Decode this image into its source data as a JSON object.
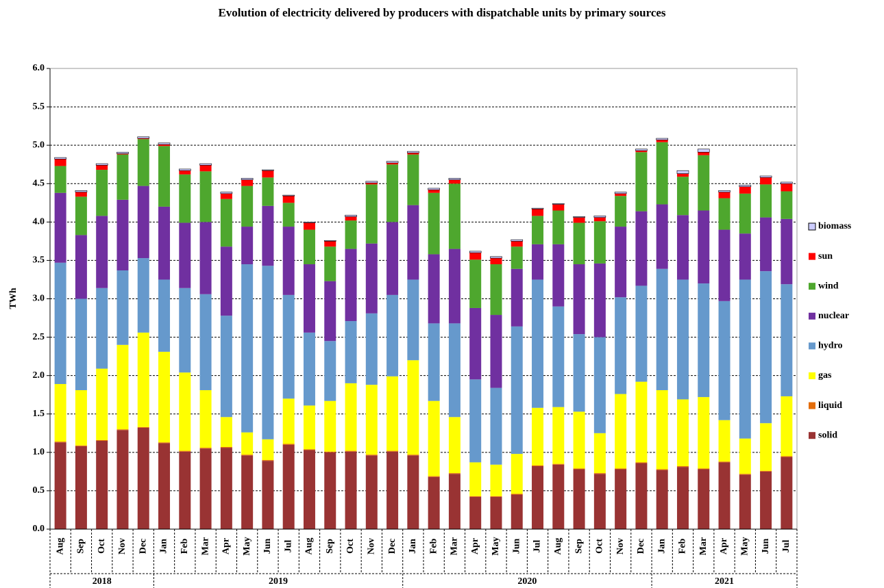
{
  "chart_data": {
    "type": "stacked_bar",
    "title": "Evolution of electricity delivered by producers with dispatchable units by primary sources",
    "y_label": "TWh",
    "categories": [
      "Aug",
      "Sep",
      "Oct",
      "Nov",
      "Dec",
      "Jan",
      "Feb",
      "Mar",
      "Apr",
      "May",
      "Jun",
      "Jul",
      "Aug",
      "Sep",
      "Oct",
      "Nov",
      "Dec",
      "Jan",
      "Feb",
      "Mar",
      "Apr",
      "May",
      "Jun",
      "Jul",
      "Aug",
      "Sep",
      "Oct",
      "Nov",
      "Dec",
      "Jan",
      "Feb",
      "Mar",
      "Apr",
      "May",
      "Jun",
      "Jul"
    ],
    "years": [
      "2018",
      "2019",
      "2020",
      "2021"
    ],
    "ylim": [
      0,
      6
    ],
    "yticks": [
      {
        "value": 0,
        "label": "0.0"
      },
      {
        "value": 0.5,
        "label": "0.5"
      },
      {
        "value": 1,
        "label": "1.0"
      },
      {
        "value": 1.5,
        "label": "1.5"
      },
      {
        "value": 2,
        "label": "2.0"
      },
      {
        "value": 2.5,
        "label": "2.5"
      },
      {
        "value": 3,
        "label": "3.0"
      },
      {
        "value": 3.5,
        "label": "3.5"
      },
      {
        "value": 4,
        "label": "4.0"
      },
      {
        "value": 4.5,
        "label": "4.5"
      },
      {
        "value": 5,
        "label": "5.0"
      },
      {
        "value": 5.5,
        "label": "5.5"
      },
      {
        "value": 6,
        "label": "6.0"
      }
    ],
    "grid": true,
    "legend": "right",
    "series": [
      {
        "name": "solid",
        "color": "#993333",
        "values": [
          1.13,
          1.08,
          1.15,
          1.29,
          1.32,
          1.12,
          1.01,
          1.05,
          1.06,
          0.96,
          0.89,
          1.1,
          1.03,
          1.0,
          1.01,
          0.96,
          1.01,
          0.96,
          0.68,
          0.72,
          0.42,
          0.42,
          0.45,
          0.82,
          0.84,
          0.78,
          0.72,
          0.78,
          0.86,
          0.77,
          0.81,
          0.78,
          0.87,
          0.71,
          0.75,
          0.94
        ]
      },
      {
        "name": "liquid",
        "color": "#e36c0a",
        "values": [
          0.01,
          0.01,
          0.01,
          0.01,
          0.01,
          0.01,
          0.01,
          0.01,
          0.01,
          0.01,
          0.01,
          0.01,
          0.01,
          0.01,
          0.01,
          0.01,
          0.01,
          0.01,
          0.01,
          0.01,
          0.01,
          0.01,
          0.01,
          0.01,
          0.01,
          0.01,
          0.01,
          0.01,
          0.01,
          0.01,
          0.01,
          0.01,
          0.01,
          0.01,
          0.01,
          0.01
        ]
      },
      {
        "name": "gas",
        "color": "#ffff00",
        "values": [
          0.75,
          0.72,
          0.93,
          1.1,
          1.23,
          1.18,
          1.02,
          0.75,
          0.39,
          0.29,
          0.27,
          0.59,
          0.57,
          0.66,
          0.88,
          0.91,
          0.97,
          1.23,
          0.98,
          0.73,
          0.44,
          0.41,
          0.52,
          0.75,
          0.74,
          0.74,
          0.52,
          0.97,
          1.05,
          1.03,
          0.87,
          0.93,
          0.54,
          0.46,
          0.62,
          0.78
        ]
      },
      {
        "name": "hydro",
        "color": "#6699cc",
        "values": [
          1.58,
          1.19,
          1.05,
          0.97,
          0.97,
          0.94,
          1.1,
          1.25,
          1.32,
          2.19,
          2.26,
          1.35,
          0.95,
          0.78,
          0.81,
          0.93,
          1.06,
          1.05,
          1.01,
          1.22,
          1.08,
          1.0,
          1.66,
          1.67,
          1.31,
          1.01,
          1.25,
          1.26,
          1.25,
          1.58,
          1.56,
          1.48,
          1.55,
          2.07,
          1.98,
          1.46
        ]
      },
      {
        "name": "nuclear",
        "color": "#7030a0",
        "values": [
          0.91,
          0.83,
          0.94,
          0.92,
          0.94,
          0.95,
          0.85,
          0.94,
          0.9,
          0.49,
          0.78,
          0.89,
          0.89,
          0.78,
          0.94,
          0.91,
          0.95,
          0.97,
          0.9,
          0.97,
          0.93,
          0.95,
          0.75,
          0.46,
          0.81,
          0.91,
          0.96,
          0.92,
          0.97,
          0.84,
          0.84,
          0.95,
          0.93,
          0.6,
          0.7,
          0.85
        ]
      },
      {
        "name": "wind",
        "color": "#4ea72e",
        "values": [
          0.35,
          0.5,
          0.6,
          0.59,
          0.61,
          0.79,
          0.63,
          0.66,
          0.62,
          0.53,
          0.37,
          0.31,
          0.45,
          0.45,
          0.37,
          0.77,
          0.75,
          0.66,
          0.8,
          0.85,
          0.63,
          0.66,
          0.29,
          0.37,
          0.44,
          0.54,
          0.55,
          0.4,
          0.77,
          0.81,
          0.5,
          0.72,
          0.41,
          0.52,
          0.43,
          0.36
        ]
      },
      {
        "name": "sun",
        "color": "#ff0000",
        "values": [
          0.09,
          0.06,
          0.06,
          0.01,
          0.01,
          0.02,
          0.05,
          0.08,
          0.07,
          0.08,
          0.09,
          0.09,
          0.09,
          0.07,
          0.05,
          0.02,
          0.02,
          0.02,
          0.04,
          0.05,
          0.09,
          0.08,
          0.07,
          0.09,
          0.08,
          0.07,
          0.05,
          0.03,
          0.02,
          0.03,
          0.04,
          0.04,
          0.08,
          0.09,
          0.09,
          0.1
        ]
      },
      {
        "name": "biomass",
        "color": "#ccccff",
        "values": [
          0.02,
          0.02,
          0.02,
          0.02,
          0.02,
          0.02,
          0.02,
          0.02,
          0.02,
          0.02,
          0.01,
          0.01,
          0.01,
          0.01,
          0.02,
          0.02,
          0.02,
          0.02,
          0.02,
          0.02,
          0.02,
          0.02,
          0.02,
          0.01,
          0.01,
          0.01,
          0.02,
          0.02,
          0.02,
          0.02,
          0.04,
          0.04,
          0.02,
          0.02,
          0.02,
          0.02
        ]
      }
    ]
  }
}
